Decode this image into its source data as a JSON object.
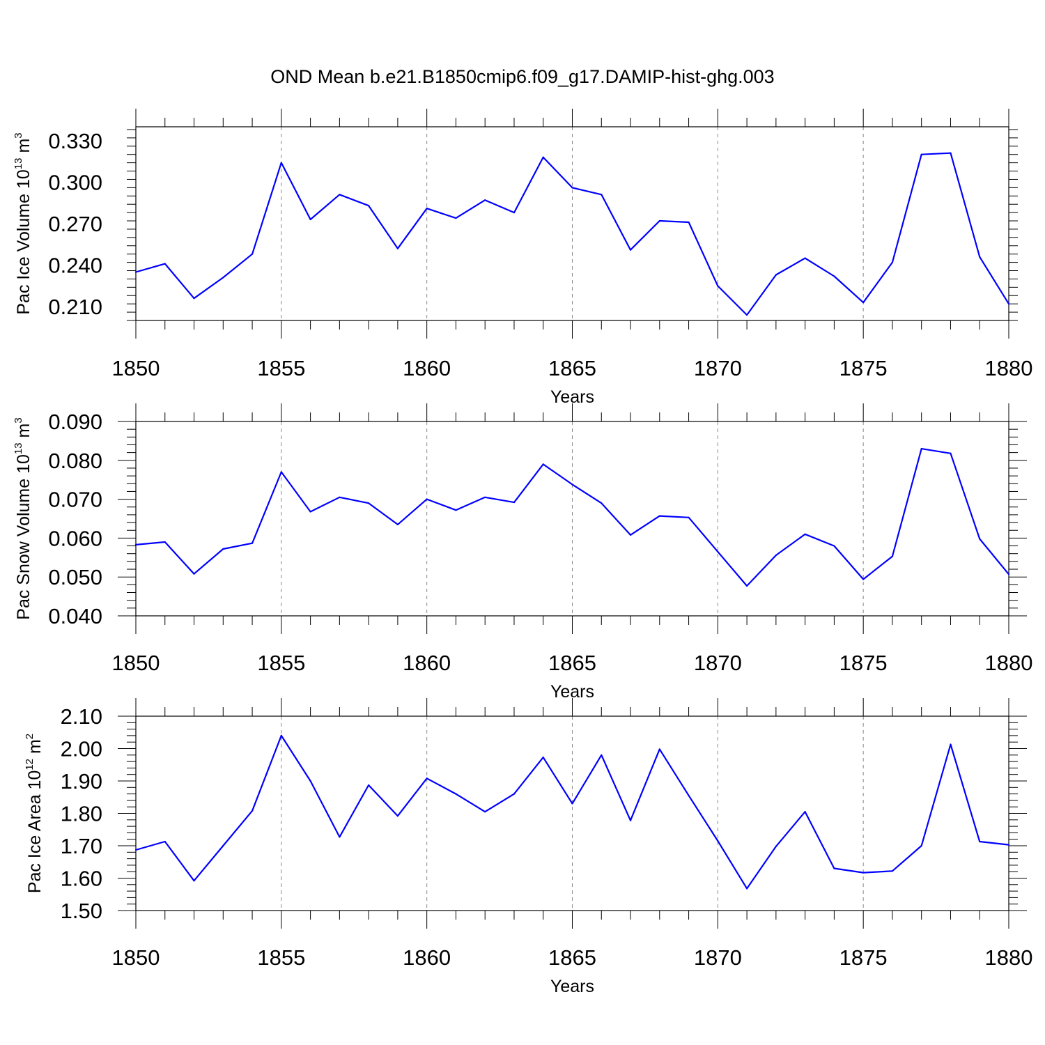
{
  "figure": {
    "title": "OND Mean b.e21.B1850cmip6.f09_g17.DAMIP-hist-ghg.003",
    "line_color": "#0000ff"
  },
  "chart_data": [
    {
      "type": "line",
      "xlabel": "Years",
      "ylabel": {
        "text": "Pac Ice Volume 10",
        "sup": "13",
        "unit": " m",
        "unit_sup": "3"
      },
      "xlim": [
        1850,
        1880
      ],
      "ylim": [
        0.2,
        0.34
      ],
      "xticks": [
        1850,
        1855,
        1860,
        1865,
        1870,
        1875,
        1880
      ],
      "yticks": [
        0.21,
        0.24,
        0.27,
        0.3,
        0.33
      ],
      "ytick_labels": [
        "0.210",
        "0.240",
        "0.270",
        "0.300",
        "0.330"
      ],
      "grid": "vertical dashed at major x ticks",
      "x": [
        1850,
        1851,
        1852,
        1853,
        1854,
        1855,
        1856,
        1857,
        1858,
        1859,
        1860,
        1861,
        1862,
        1863,
        1864,
        1865,
        1866,
        1867,
        1868,
        1869,
        1870,
        1871,
        1872,
        1873,
        1874,
        1875,
        1876,
        1877,
        1878,
        1879,
        1880
      ],
      "y": [
        0.235,
        0.241,
        0.216,
        0.231,
        0.248,
        0.314,
        0.273,
        0.291,
        0.283,
        0.252,
        0.281,
        0.274,
        0.287,
        0.278,
        0.318,
        0.296,
        0.291,
        0.251,
        0.272,
        0.271,
        0.225,
        0.204,
        0.233,
        0.245,
        0.232,
        0.213,
        0.242,
        0.32,
        0.321,
        0.246,
        0.212
      ]
    },
    {
      "type": "line",
      "xlabel": "Years",
      "ylabel": {
        "text": "Pac Snow Volume 10",
        "sup": "13",
        "unit": " m",
        "unit_sup": "3"
      },
      "xlim": [
        1850,
        1880
      ],
      "ylim": [
        0.04,
        0.09
      ],
      "xticks": [
        1850,
        1855,
        1860,
        1865,
        1870,
        1875,
        1880
      ],
      "yticks": [
        0.04,
        0.05,
        0.06,
        0.07,
        0.08,
        0.09
      ],
      "ytick_labels": [
        "0.040",
        "0.050",
        "0.060",
        "0.070",
        "0.080",
        "0.090"
      ],
      "grid": "vertical dashed at major x ticks",
      "x": [
        1850,
        1851,
        1852,
        1853,
        1854,
        1855,
        1856,
        1857,
        1858,
        1859,
        1860,
        1861,
        1862,
        1863,
        1864,
        1865,
        1866,
        1867,
        1868,
        1869,
        1870,
        1871,
        1872,
        1873,
        1874,
        1875,
        1876,
        1877,
        1878,
        1879,
        1880
      ],
      "y": [
        0.0583,
        0.059,
        0.0508,
        0.0572,
        0.0587,
        0.077,
        0.0668,
        0.0705,
        0.069,
        0.0635,
        0.07,
        0.0672,
        0.0705,
        0.0692,
        0.079,
        0.0738,
        0.069,
        0.0608,
        0.0657,
        0.0653,
        0.0565,
        0.0477,
        0.0556,
        0.061,
        0.058,
        0.0494,
        0.0553,
        0.083,
        0.0818,
        0.0598,
        0.0507
      ]
    },
    {
      "type": "line",
      "xlabel": "Years",
      "ylabel": {
        "text": "Pac Ice Area 10",
        "sup": "12",
        "unit": " m",
        "unit_sup": "2"
      },
      "xlim": [
        1850,
        1880
      ],
      "ylim": [
        1.5,
        2.1
      ],
      "xticks": [
        1850,
        1855,
        1860,
        1865,
        1870,
        1875,
        1880
      ],
      "yticks": [
        1.5,
        1.6,
        1.7,
        1.8,
        1.9,
        2.0,
        2.1
      ],
      "ytick_labels": [
        "1.50",
        "1.60",
        "1.70",
        "1.80",
        "1.90",
        "2.00",
        "2.10"
      ],
      "grid": "vertical dashed at major x ticks",
      "x": [
        1850,
        1851,
        1852,
        1853,
        1854,
        1855,
        1856,
        1857,
        1858,
        1859,
        1860,
        1861,
        1862,
        1863,
        1864,
        1865,
        1866,
        1867,
        1868,
        1869,
        1870,
        1871,
        1872,
        1873,
        1874,
        1875,
        1876,
        1877,
        1878,
        1879,
        1880
      ],
      "y": [
        1.687,
        1.713,
        1.592,
        1.7,
        1.808,
        2.04,
        1.9,
        1.727,
        1.887,
        1.792,
        1.908,
        1.86,
        1.805,
        1.86,
        1.973,
        1.83,
        1.98,
        1.778,
        1.998,
        1.855,
        1.715,
        1.568,
        1.698,
        1.805,
        1.63,
        1.617,
        1.622,
        1.7,
        2.013,
        1.713,
        1.703
      ]
    }
  ]
}
